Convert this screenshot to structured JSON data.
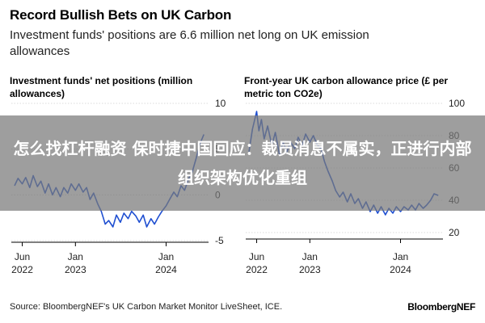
{
  "header": {
    "title": "Record Bullish Bets on UK Carbon",
    "subtitle": "Investment funds' positions are 6.6 million net long on UK emission allowances"
  },
  "overlay": {
    "text": "怎么找杠杆融资 保时捷中国回应：裁员消息不属实，正进行内部组织架构优化重组"
  },
  "footer": {
    "source": "Source: BloombergNEF's UK Carbon Market Monitor LiveSheet, ICE.",
    "brand": "BloombergNEF"
  },
  "colors": {
    "series": "#1f4fd1",
    "axis": "#000000",
    "overlay": "#787878"
  },
  "chart_data": [
    {
      "type": "line",
      "title": "Investment funds' net positions (million allowances)",
      "xlabel": "",
      "ylabel": "",
      "ylim": [
        -5,
        10
      ],
      "yticks": [
        10,
        5,
        0,
        -5
      ],
      "ytick_labels": [
        "10",
        "5",
        "0",
        "-5"
      ],
      "y_axis_side": "right",
      "x_ticks": [
        {
          "date": "2022-06",
          "line1": "Jun",
          "line2": "2022"
        },
        {
          "date": "2023-01",
          "line1": "Jan",
          "line2": "2023"
        },
        {
          "date": "2024-01",
          "line1": "Jan",
          "line2": "2024"
        }
      ],
      "series": [
        {
          "color": "#1f4fd1",
          "points": [
            [
              "2022-05-01",
              1.0
            ],
            [
              "2022-05-15",
              1.8
            ],
            [
              "2022-06-01",
              1.2
            ],
            [
              "2022-06-15",
              1.9
            ],
            [
              "2022-07-01",
              0.8
            ],
            [
              "2022-07-15",
              2.1
            ],
            [
              "2022-08-01",
              0.9
            ],
            [
              "2022-08-15",
              1.5
            ],
            [
              "2022-09-01",
              0.2
            ],
            [
              "2022-09-15",
              1.2
            ],
            [
              "2022-10-01",
              0.0
            ],
            [
              "2022-10-15",
              0.8
            ],
            [
              "2022-11-01",
              -0.2
            ],
            [
              "2022-11-15",
              0.8
            ],
            [
              "2022-12-01",
              0.2
            ],
            [
              "2022-12-15",
              1.2
            ],
            [
              "2023-01-01",
              0.5
            ],
            [
              "2023-01-15",
              1.2
            ],
            [
              "2023-02-01",
              0.3
            ],
            [
              "2023-02-15",
              0.8
            ],
            [
              "2023-03-01",
              -0.5
            ],
            [
              "2023-03-15",
              0.2
            ],
            [
              "2023-04-01",
              -1.0
            ],
            [
              "2023-04-15",
              -1.8
            ],
            [
              "2023-05-01",
              -3.2
            ],
            [
              "2023-05-15",
              -2.8
            ],
            [
              "2023-06-01",
              -3.5
            ],
            [
              "2023-06-15",
              -2.2
            ],
            [
              "2023-07-01",
              -3.0
            ],
            [
              "2023-07-15",
              -2.0
            ],
            [
              "2023-08-01",
              -2.6
            ],
            [
              "2023-08-15",
              -1.8
            ],
            [
              "2023-09-01",
              -2.3
            ],
            [
              "2023-09-15",
              -3.0
            ],
            [
              "2023-10-01",
              -2.2
            ],
            [
              "2023-10-15",
              -3.5
            ],
            [
              "2023-11-01",
              -2.6
            ],
            [
              "2023-11-15",
              -3.2
            ],
            [
              "2023-12-01",
              -2.4
            ],
            [
              "2023-12-15",
              -1.8
            ],
            [
              "2024-01-01",
              -1.2
            ],
            [
              "2024-01-15",
              -0.5
            ],
            [
              "2024-02-01",
              0.3
            ],
            [
              "2024-02-15",
              -0.2
            ],
            [
              "2024-03-01",
              1.0
            ],
            [
              "2024-03-15",
              0.5
            ],
            [
              "2024-04-01",
              1.8
            ],
            [
              "2024-04-15",
              2.5
            ],
            [
              "2024-05-01",
              4.0
            ],
            [
              "2024-05-15",
              5.5
            ],
            [
              "2024-06-01",
              6.6
            ]
          ]
        }
      ]
    },
    {
      "type": "line",
      "title": "Front-year UK carbon allowance price (£ per metric ton CO2e)",
      "xlabel": "",
      "ylabel": "",
      "ylim": [
        20,
        100
      ],
      "yticks": [
        100,
        80,
        60,
        40,
        20
      ],
      "ytick_labels": [
        "100",
        "80",
        "60",
        "40",
        "20"
      ],
      "y_axis_side": "right",
      "x_ticks": [
        {
          "date": "2022-06",
          "line1": "Jun",
          "line2": "2022"
        },
        {
          "date": "2023-01",
          "line1": "Jan",
          "line2": "2023"
        },
        {
          "date": "2024-01",
          "line1": "Jan",
          "line2": "2024"
        }
      ],
      "series": [
        {
          "color": "#1f4fd1",
          "points": [
            [
              "2022-05-01",
              70
            ],
            [
              "2022-05-15",
              84
            ],
            [
              "2022-06-01",
              95
            ],
            [
              "2022-06-10",
              83
            ],
            [
              "2022-06-20",
              90
            ],
            [
              "2022-07-01",
              78
            ],
            [
              "2022-07-15",
              86
            ],
            [
              "2022-08-01",
              74
            ],
            [
              "2022-08-15",
              82
            ],
            [
              "2022-09-01",
              68
            ],
            [
              "2022-09-15",
              76
            ],
            [
              "2022-10-01",
              70
            ],
            [
              "2022-10-15",
              76
            ],
            [
              "2022-11-01",
              72
            ],
            [
              "2022-11-15",
              79
            ],
            [
              "2022-12-01",
              74
            ],
            [
              "2022-12-15",
              81
            ],
            [
              "2023-01-01",
              76
            ],
            [
              "2023-01-15",
              80
            ],
            [
              "2023-02-01",
              74
            ],
            [
              "2023-02-15",
              72
            ],
            [
              "2023-03-01",
              64
            ],
            [
              "2023-03-15",
              58
            ],
            [
              "2023-04-01",
              52
            ],
            [
              "2023-04-15",
              46
            ],
            [
              "2023-05-01",
              42
            ],
            [
              "2023-05-15",
              45
            ],
            [
              "2023-06-01",
              39
            ],
            [
              "2023-06-15",
              44
            ],
            [
              "2023-07-01",
              38
            ],
            [
              "2023-07-15",
              41
            ],
            [
              "2023-08-01",
              35
            ],
            [
              "2023-08-15",
              39
            ],
            [
              "2023-09-01",
              33
            ],
            [
              "2023-09-15",
              37
            ],
            [
              "2023-10-01",
              32
            ],
            [
              "2023-10-15",
              36
            ],
            [
              "2023-11-01",
              31
            ],
            [
              "2023-11-15",
              35
            ],
            [
              "2023-12-01",
              32
            ],
            [
              "2023-12-15",
              36
            ],
            [
              "2024-01-01",
              33
            ],
            [
              "2024-01-15",
              36
            ],
            [
              "2024-02-01",
              34
            ],
            [
              "2024-02-15",
              37
            ],
            [
              "2024-03-01",
              34
            ],
            [
              "2024-03-15",
              38
            ],
            [
              "2024-04-01",
              35
            ],
            [
              "2024-04-15",
              37
            ],
            [
              "2024-05-01",
              40
            ],
            [
              "2024-05-15",
              44
            ],
            [
              "2024-06-01",
              43
            ]
          ]
        }
      ]
    }
  ]
}
